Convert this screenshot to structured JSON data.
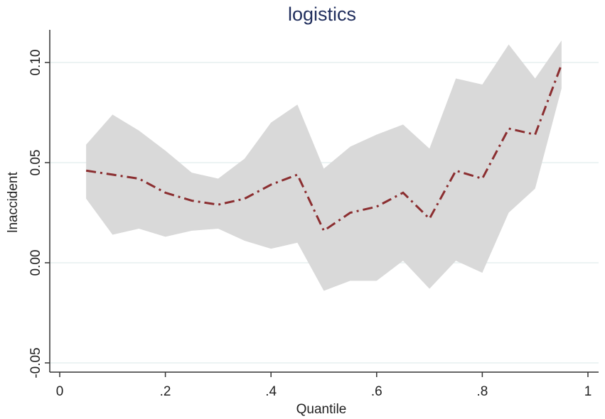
{
  "chart_data": {
    "type": "line",
    "title": "logistics",
    "xlabel": "Quantile",
    "ylabel": "lnaccident",
    "xlim": [
      0,
      1
    ],
    "ylim": [
      -0.05,
      0.1
    ],
    "x_ticks": [
      0,
      0.2,
      0.4,
      0.6,
      0.8,
      1
    ],
    "x_tick_labels": [
      "0",
      ".2",
      ".4",
      ".6",
      ".8",
      "1"
    ],
    "y_ticks": [
      -0.05,
      0,
      0.05,
      0.1
    ],
    "y_tick_labels": [
      "-0.05",
      "0.00",
      "0.05",
      "0.10"
    ],
    "grid": true,
    "x": [
      0.05,
      0.1,
      0.15,
      0.2,
      0.25,
      0.3,
      0.35,
      0.4,
      0.45,
      0.5,
      0.55,
      0.6,
      0.65,
      0.7,
      0.75,
      0.8,
      0.85,
      0.9,
      0.95
    ],
    "series": [
      {
        "values": [
          0.046,
          0.044,
          0.042,
          0.035,
          0.031,
          0.029,
          0.032,
          0.039,
          0.044,
          0.016,
          0.025,
          0.028,
          0.035,
          0.022,
          0.046,
          0.042,
          0.067,
          0.064,
          0.099
        ]
      }
    ],
    "ci_upper": [
      0.059,
      0.074,
      0.066,
      0.056,
      0.045,
      0.042,
      0.052,
      0.07,
      0.079,
      0.047,
      0.058,
      0.064,
      0.069,
      0.057,
      0.092,
      0.089,
      0.109,
      0.092,
      0.111
    ],
    "ci_lower": [
      0.032,
      0.014,
      0.017,
      0.013,
      0.016,
      0.017,
      0.011,
      0.007,
      0.01,
      -0.014,
      -0.009,
      -0.009,
      0.001,
      -0.013,
      0.001,
      -0.005,
      0.025,
      0.037,
      0.087
    ],
    "colors": {
      "line": "#8b2e30",
      "band": "#d9d9d9",
      "grid": "#e6efef",
      "axis": "#333333",
      "title": "#1f2d5c"
    }
  }
}
